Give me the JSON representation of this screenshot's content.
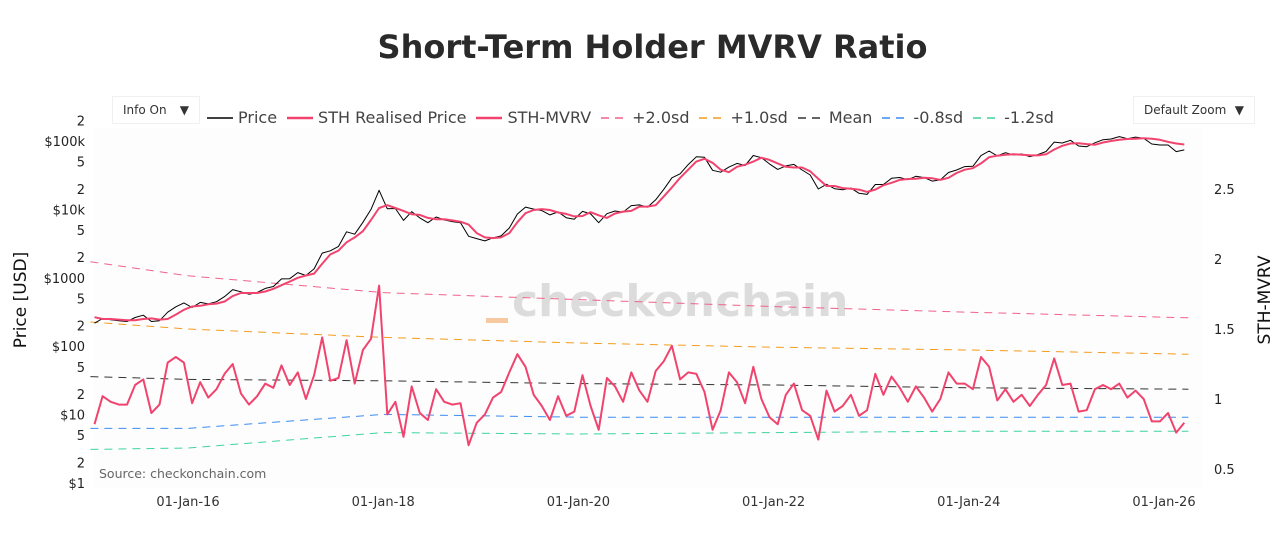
{
  "title": "Short-Term Holder MVRV Ratio",
  "controls": {
    "info_label": "Info On",
    "zoom_label": "Default Zoom",
    "arrow": "▼"
  },
  "source": "Source: checkonchain.com",
  "watermark": "checkonchain",
  "colors": {
    "price": "#000000",
    "realised": "#f0446e",
    "mvrv": "#f0446e",
    "plus2": "#f0628a",
    "plus1": "#f39c1f",
    "mean": "#333333",
    "minus08": "#3b8cf0",
    "minus12": "#3ed49b"
  },
  "chart_data": {
    "type": "line",
    "title": "Short-Term Holder MVRV Ratio",
    "ylabel": "Price [USD]",
    "y2label": "STH-MVRV",
    "yscale": "log",
    "ylim": [
      1,
      300000
    ],
    "y2lim": [
      0.4,
      2.9
    ],
    "x_ticks": [
      "01-Jan-16",
      "01-Jan-18",
      "01-Jan-20",
      "01-Jan-22",
      "01-Jan-24",
      "01-Jan-26"
    ],
    "y_ticks": [
      "$1",
      "2",
      "5",
      "$10",
      "2",
      "5",
      "$100",
      "2",
      "5",
      "$1000",
      "2",
      "5",
      "$10k",
      "2",
      "5",
      "$100k",
      "2"
    ],
    "y2_ticks": [
      "0.5",
      "1",
      "1.5",
      "2",
      "2.5"
    ],
    "legend": [
      "Price",
      "STH Realised Price",
      "STH-MVRV",
      "+2.0sd",
      "+1.0sd",
      "Mean",
      "-0.8sd",
      "-1.2sd"
    ],
    "legend_placement": "top",
    "start_month": "2015-01",
    "price": [
      217,
      254,
      244,
      236,
      230,
      263,
      284,
      230,
      236,
      314,
      377,
      430,
      368,
      437,
      416,
      448,
      531,
      673,
      624,
      575,
      609,
      700,
      745,
      964,
      970,
      1190,
      1080,
      1350,
      2300,
      2480,
      2880,
      4700,
      4340,
      6470,
      10000,
      19000,
      10200,
      10300,
      6900,
      9240,
      7500,
      6400,
      7730,
      7030,
      6630,
      6370,
      4040,
      3740,
      3460,
      3850,
      4100,
      5350,
      8570,
      10800,
      10100,
      9600,
      8300,
      9200,
      7550,
      7200,
      9350,
      8600,
      6400,
      8650,
      9460,
      9140,
      11350,
      11650,
      10780,
      13800,
      19700,
      29000,
      33100,
      45200,
      58800,
      57700,
      37300,
      35000,
      41500,
      47100,
      43800,
      61300,
      57000,
      46300,
      38500,
      43200,
      45500,
      37700,
      31800,
      19900,
      23300,
      20050,
      19400,
      20500,
      17200,
      16550,
      23100,
      23150,
      28500,
      29250,
      27200,
      30500,
      29200,
      25950,
      26970,
      34650,
      37700,
      42300,
      42600,
      61200,
      71300,
      60600,
      67500,
      62700,
      64600,
      59000,
      63300,
      70200,
      96400,
      93400,
      102400,
      84400,
      82500,
      94200,
      104600,
      107100,
      115800,
      108200,
      114000,
      109500,
      90400,
      87500,
      87300,
      70000,
      74000
    ],
    "sth_realised_price": [
      265,
      250,
      250,
      245,
      240,
      240,
      250,
      255,
      245,
      250,
      290,
      340,
      380,
      390,
      410,
      420,
      450,
      540,
      600,
      600,
      600,
      630,
      690,
      780,
      880,
      1000,
      1080,
      1150,
      1600,
      2200,
      2500,
      3300,
      3900,
      4800,
      7000,
      10500,
      11500,
      10500,
      9500,
      8500,
      8300,
      7500,
      7200,
      7200,
      6900,
      6600,
      6000,
      4500,
      3900,
      3800,
      3900,
      4500,
      6500,
      8800,
      9800,
      10100,
      9800,
      9000,
      8600,
      7900,
      8000,
      9100,
      8200,
      7500,
      8700,
      9300,
      9500,
      11000,
      11000,
      11500,
      15500,
      21000,
      29000,
      38000,
      50000,
      55000,
      48000,
      38000,
      35000,
      42000,
      45000,
      50000,
      57000,
      53000,
      47000,
      42000,
      41000,
      41000,
      36000,
      28000,
      22000,
      22000,
      20500,
      20000,
      19500,
      18000,
      19500,
      22500,
      24500,
      27000,
      27800,
      28000,
      29000,
      28500,
      27000,
      29000,
      34000,
      38000,
      40000,
      47000,
      58000,
      61000,
      63000,
      64000,
      63000,
      62000,
      61500,
      64000,
      75000,
      85000,
      92000,
      93000,
      90000,
      88000,
      95000,
      100000,
      104000,
      107000,
      108000,
      110000,
      108000,
      104000,
      97000,
      92000,
      89000
    ],
    "sth_mvrv": [
      0.82,
      1.02,
      0.98,
      0.96,
      0.96,
      1.1,
      1.14,
      0.9,
      0.96,
      1.26,
      1.3,
      1.26,
      0.97,
      1.12,
      1.01,
      1.07,
      1.18,
      1.25,
      1.04,
      0.96,
      1.02,
      1.11,
      1.08,
      1.24,
      1.1,
      1.19,
      1.0,
      1.17,
      1.44,
      1.13,
      1.15,
      1.42,
      1.11,
      1.35,
      1.43,
      1.81,
      0.89,
      0.98,
      0.73,
      1.09,
      0.9,
      0.85,
      1.07,
      0.98,
      0.96,
      0.97,
      0.67,
      0.83,
      0.89,
      1.01,
      1.05,
      1.19,
      1.32,
      1.23,
      1.03,
      0.95,
      0.85,
      1.02,
      0.88,
      0.91,
      1.17,
      0.95,
      0.78,
      1.15,
      1.09,
      0.98,
      1.19,
      1.06,
      0.98,
      1.2,
      1.27,
      1.38,
      1.14,
      1.19,
      1.18,
      1.05,
      0.78,
      0.92,
      1.19,
      1.12,
      0.97,
      1.23,
      1.0,
      0.87,
      0.82,
      1.03,
      1.11,
      0.92,
      0.88,
      0.71,
      1.06,
      0.91,
      0.95,
      1.03,
      0.88,
      0.92,
      1.18,
      1.03,
      1.16,
      1.08,
      0.98,
      1.09,
      1.01,
      0.91,
      1.0,
      1.19,
      1.11,
      1.11,
      1.07,
      1.3,
      1.23,
      0.99,
      1.07,
      0.98,
      1.03,
      0.95,
      1.03,
      1.1,
      1.29,
      1.1,
      1.11,
      0.91,
      0.92,
      1.07,
      1.1,
      1.07,
      1.11,
      1.01,
      1.06,
      1.0,
      0.84,
      0.84,
      0.9,
      0.76,
      0.83
    ],
    "bands": {
      "years": [
        2015.0,
        2016.0,
        2018.0,
        2020.0,
        2022.0,
        2024.0,
        2026.25
      ],
      "plus2": [
        1.98,
        1.88,
        1.76,
        1.71,
        1.66,
        1.62,
        1.58
      ],
      "plus1": [
        1.55,
        1.5,
        1.44,
        1.4,
        1.37,
        1.35,
        1.32
      ],
      "mean": [
        1.16,
        1.14,
        1.13,
        1.11,
        1.1,
        1.08,
        1.07
      ],
      "minus08": [
        0.79,
        0.79,
        0.89,
        0.87,
        0.87,
        0.87,
        0.87
      ],
      "minus12": [
        0.64,
        0.65,
        0.76,
        0.75,
        0.76,
        0.77,
        0.77
      ]
    }
  }
}
